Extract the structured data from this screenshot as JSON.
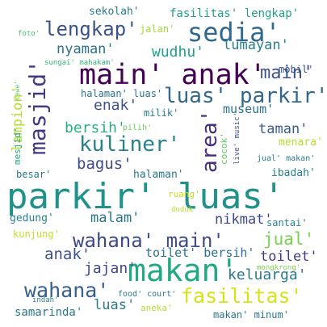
{
  "words": [
    {
      "text": "parkir' luas'",
      "color": "#21918c"
    },
    {
      "text": "makan'",
      "color": "#22a884"
    },
    {
      "text": "main' anak'",
      "color": "#440154"
    },
    {
      "text": "sedia'",
      "color": "#31688e"
    },
    {
      "text": "lengkap'",
      "color": "#3b528b"
    },
    {
      "text": "masjid'",
      "color": "#443983"
    },
    {
      "text": "luas' parkir'",
      "color": "#31688e"
    },
    {
      "text": "kuliner'",
      "color": "#26828e"
    },
    {
      "text": "area'",
      "color": "#472d7b"
    },
    {
      "text": "wahana' main'",
      "color": "#3e4a89"
    },
    {
      "text": "wahana'",
      "color": "#355f8d"
    },
    {
      "text": "fasilitas'",
      "color": "#d8e219"
    },
    {
      "text": "sekolah'",
      "color": "#2a788e"
    },
    {
      "text": "fasilitas' lengkap'",
      "color": "#1fa187"
    },
    {
      "text": "jalan'",
      "color": "#a0da39"
    },
    {
      "text": "foto'",
      "color": "#4ac16d"
    },
    {
      "text": "nyaman'",
      "color": "#2c728e"
    },
    {
      "text": "wudhu'",
      "color": "#1f9e89"
    },
    {
      "text": "lumayan'",
      "color": "#277f8e"
    },
    {
      "text": "sungai' mahakam'",
      "color": "#35b779"
    },
    {
      "text": "mobil'",
      "color": "#3b528b"
    },
    {
      "text": "cewe'",
      "color": "#5ec962"
    },
    {
      "text": "main'",
      "color": "#3b528b"
    },
    {
      "text": "halaman' luas'",
      "color": "#2c728e"
    },
    {
      "text": "enak'",
      "color": "#3b528b"
    },
    {
      "text": "museum'",
      "color": "#2c728e"
    },
    {
      "text": "lampion'",
      "color": "#b5de2b"
    },
    {
      "text": "bersih'",
      "color": "#29af7f"
    },
    {
      "text": "milik'",
      "color": "#277f8e"
    },
    {
      "text": "taman'",
      "color": "#365c8d"
    },
    {
      "text": "mesjid'",
      "color": "#22a884"
    },
    {
      "text": "pilih'",
      "color": "#6ccd5a"
    },
    {
      "text": "live' music'",
      "color": "#3b528b"
    },
    {
      "text": "menara'",
      "color": "#b5de2b"
    },
    {
      "text": "bagus'",
      "color": "#3e4a89"
    },
    {
      "text": "cocok'",
      "color": "#5ec962"
    },
    {
      "text": "jual' makan'",
      "color": "#277f8e"
    },
    {
      "text": "besar'",
      "color": "#2a788e"
    },
    {
      "text": "halaman'",
      "color": "#2a788e"
    },
    {
      "text": "ibadah'",
      "color": "#277f8e"
    },
    {
      "text": "ruang'",
      "color": "#c8e020"
    },
    {
      "text": "gedung'",
      "color": "#277f8e"
    },
    {
      "text": "malam'",
      "color": "#2a788e"
    },
    {
      "text": "duduk'",
      "color": "#b5de2b"
    },
    {
      "text": "nikmat'",
      "color": "#3e4a89"
    },
    {
      "text": "santai'",
      "color": "#277f8e"
    },
    {
      "text": "kunjung'",
      "color": "#c2df23"
    },
    {
      "text": "jual'",
      "color": "#7ad151"
    },
    {
      "text": "anak'",
      "color": "#3b528b"
    },
    {
      "text": "toilet' bersih'",
      "color": "#2c728e"
    },
    {
      "text": "toilet'",
      "color": "#443983"
    },
    {
      "text": "jajan'",
      "color": "#3e4a89"
    },
    {
      "text": "keluarga'",
      "color": "#2a788e"
    },
    {
      "text": "mongkrong'",
      "color": "#7ad151"
    },
    {
      "text": "indah'",
      "color": "#277f8e"
    },
    {
      "text": "food' court'",
      "color": "#2a788e"
    },
    {
      "text": "samarinda'",
      "color": "#2a788e"
    },
    {
      "text": "luas'",
      "color": "#2a788e"
    },
    {
      "text": "aneka'",
      "color": "#b5de2b"
    },
    {
      "text": "makan' minum'",
      "color": "#2a788e"
    }
  ]
}
